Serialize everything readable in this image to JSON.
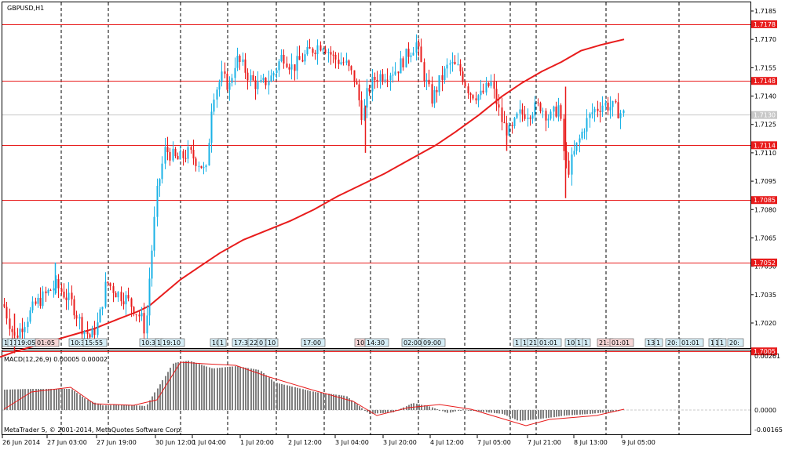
{
  "window": {
    "symbol_label": "GBPUSD,H1"
  },
  "price_axis": {
    "ticks": [
      "1.7185",
      "1.7170",
      "1.7155",
      "1.7140",
      "1.7125",
      "1.7110",
      "1.7095",
      "1.7080",
      "1.7065",
      "1.7050",
      "1.7035",
      "1.7020"
    ],
    "current_price": "1.7130"
  },
  "levels": [
    {
      "label": "1.7178",
      "value": 1.7178
    },
    {
      "label": "1.7148",
      "value": 1.7148
    },
    {
      "label": "1.7114",
      "value": 1.7114
    },
    {
      "label": "1.7085",
      "value": 1.7085
    },
    {
      "label": "1.7052",
      "value": 1.7052
    },
    {
      "label": "1.7005",
      "value": 1.7005
    }
  ],
  "event_markers": [
    {
      "text": "11",
      "color": "blue"
    },
    {
      "text": "1",
      "color": "blue"
    },
    {
      "text": "1",
      "color": "blue"
    },
    {
      "text": "19:05",
      "color": "blue"
    },
    {
      "text": "01:05",
      "color": "red"
    },
    {
      "text": "10:3",
      "color": "blue"
    },
    {
      "text": "15:55",
      "color": "blue"
    },
    {
      "text": "10:3",
      "color": "blue"
    },
    {
      "text": "1",
      "color": "blue"
    },
    {
      "text": "19:10",
      "color": "blue"
    },
    {
      "text": "10:",
      "color": "blue"
    },
    {
      "text": "1",
      "color": "blue"
    },
    {
      "text": "17:3",
      "color": "blue"
    },
    {
      "text": "22:00",
      "color": "blue"
    },
    {
      "text": "0",
      "color": "blue"
    },
    {
      "text": "10",
      "color": "blue"
    },
    {
      "text": "17:00",
      "color": "blue"
    },
    {
      "text": "10:",
      "color": "red"
    },
    {
      "text": "14:30",
      "color": "blue"
    },
    {
      "text": "02:00",
      "color": "blue"
    },
    {
      "text": "09:00",
      "color": "blue"
    },
    {
      "text": "1",
      "color": "blue"
    },
    {
      "text": "17:",
      "color": "blue"
    },
    {
      "text": "21:",
      "color": "blue"
    },
    {
      "text": "01:01",
      "color": "blue"
    },
    {
      "text": "10",
      "color": "blue"
    },
    {
      "text": "1",
      "color": "blue"
    },
    {
      "text": "1",
      "color": "blue"
    },
    {
      "text": "21:",
      "color": "red"
    },
    {
      "text": "01:01",
      "color": "red"
    },
    {
      "text": "13",
      "color": "blue"
    },
    {
      "text": "1",
      "color": "blue"
    },
    {
      "text": "20:",
      "color": "blue"
    },
    {
      "text": "01:01",
      "color": "blue"
    },
    {
      "text": "1",
      "color": "blue"
    },
    {
      "text": "1",
      "color": "blue"
    },
    {
      "text": "1",
      "color": "blue"
    },
    {
      "text": "20:",
      "color": "blue"
    }
  ],
  "macd": {
    "label": "MACD(12,26,9) 0.00005 0.00002",
    "ticks": [
      "0.00261",
      "0.0000",
      "-0.00165"
    ]
  },
  "copyright": "MetaTrader 5, © 2001-2014, MetaQuotes Software Corp.",
  "time_axis": [
    "26 Jun 2014",
    "27 Jun 03:00",
    "27 Jun 19:00",
    "30 Jun 12:00",
    "1 Jul 04:00",
    "1 Jul 20:00",
    "2 Jul 12:00",
    "3 Jul 04:00",
    "3 Jul 20:00",
    "4 Jul 12:00",
    "7 Jul 05:00",
    "7 Jul 21:00",
    "8 Jul 13:00",
    "9 Jul 05:00"
  ],
  "chart_data": {
    "type": "candlestick",
    "symbol": "GBPUSD",
    "timeframe": "H1",
    "y_range": [
      1.6998,
      1.7192
    ],
    "bull_color": "#1ab2e6",
    "bear_color": "#e81c1c",
    "ma_color": "#e81c1c",
    "level_color": "#e81c1c",
    "ma_values": [
      [
        0,
        1.7002
      ],
      [
        20,
        1.7005
      ],
      [
        45,
        1.7008
      ],
      [
        70,
        1.7011
      ],
      [
        95,
        1.7014
      ],
      [
        120,
        1.7017
      ],
      [
        150,
        1.7022
      ],
      [
        175,
        1.7026
      ],
      [
        190,
        1.7029
      ],
      [
        210,
        1.7036
      ],
      [
        230,
        1.7043
      ],
      [
        255,
        1.705
      ],
      [
        280,
        1.7057
      ],
      [
        310,
        1.7064
      ],
      [
        340,
        1.7069
      ],
      [
        370,
        1.7074
      ],
      [
        400,
        1.708
      ],
      [
        430,
        1.7087
      ],
      [
        460,
        1.7093
      ],
      [
        490,
        1.7099
      ],
      [
        520,
        1.7106
      ],
      [
        555,
        1.7114
      ],
      [
        580,
        1.7121
      ],
      [
        610,
        1.713
      ],
      [
        640,
        1.714
      ],
      [
        665,
        1.7147
      ],
      [
        690,
        1.7153
      ],
      [
        715,
        1.7158
      ],
      [
        740,
        1.7164
      ],
      [
        765,
        1.7167
      ],
      [
        795,
        1.717
      ]
    ],
    "price_path": [
      [
        0,
        1.7035
      ],
      [
        18,
        1.7012
      ],
      [
        30,
        1.702
      ],
      [
        45,
        1.703
      ],
      [
        58,
        1.7035
      ],
      [
        70,
        1.704
      ],
      [
        80,
        1.7036
      ],
      [
        92,
        1.703
      ],
      [
        104,
        1.7018
      ],
      [
        115,
        1.7012
      ],
      [
        125,
        1.702
      ],
      [
        135,
        1.7042
      ],
      [
        148,
        1.7036
      ],
      [
        160,
        1.7033
      ],
      [
        170,
        1.7028
      ],
      [
        180,
        1.7022
      ],
      [
        185,
        1.7015
      ],
      [
        190,
        1.7045
      ],
      [
        200,
        1.709
      ],
      [
        210,
        1.7112
      ],
      [
        225,
        1.7106
      ],
      [
        240,
        1.711
      ],
      [
        255,
        1.7104
      ],
      [
        262,
        1.7098
      ],
      [
        270,
        1.714
      ],
      [
        282,
        1.715
      ],
      [
        292,
        1.7145
      ],
      [
        300,
        1.716
      ],
      [
        310,
        1.7155
      ],
      [
        320,
        1.7148
      ],
      [
        330,
        1.7145
      ],
      [
        345,
        1.715
      ],
      [
        360,
        1.7162
      ],
      [
        372,
        1.7155
      ],
      [
        385,
        1.716
      ],
      [
        398,
        1.7165
      ],
      [
        410,
        1.7168
      ],
      [
        425,
        1.716
      ],
      [
        440,
        1.7157
      ],
      [
        452,
        1.7148
      ],
      [
        462,
        1.7128
      ],
      [
        468,
        1.7143
      ],
      [
        478,
        1.715
      ],
      [
        490,
        1.7152
      ],
      [
        505,
        1.7154
      ],
      [
        518,
        1.7162
      ],
      [
        530,
        1.7168
      ],
      [
        540,
        1.715
      ],
      [
        550,
        1.7138
      ],
      [
        560,
        1.7148
      ],
      [
        572,
        1.7157
      ],
      [
        585,
        1.7154
      ],
      [
        598,
        1.7142
      ],
      [
        612,
        1.714
      ],
      [
        625,
        1.7147
      ],
      [
        640,
        1.7125
      ],
      [
        650,
        1.712
      ],
      [
        660,
        1.713
      ],
      [
        675,
        1.7132
      ],
      [
        688,
        1.7135
      ],
      [
        700,
        1.7128
      ],
      [
        712,
        1.7135
      ],
      [
        718,
        1.711
      ],
      [
        723,
        1.71
      ],
      [
        733,
        1.7112
      ],
      [
        745,
        1.7125
      ],
      [
        755,
        1.7132
      ],
      [
        768,
        1.7136
      ],
      [
        780,
        1.7134
      ],
      [
        795,
        1.713
      ]
    ],
    "macd_range": [
      -0.00165,
      0.00261
    ]
  }
}
